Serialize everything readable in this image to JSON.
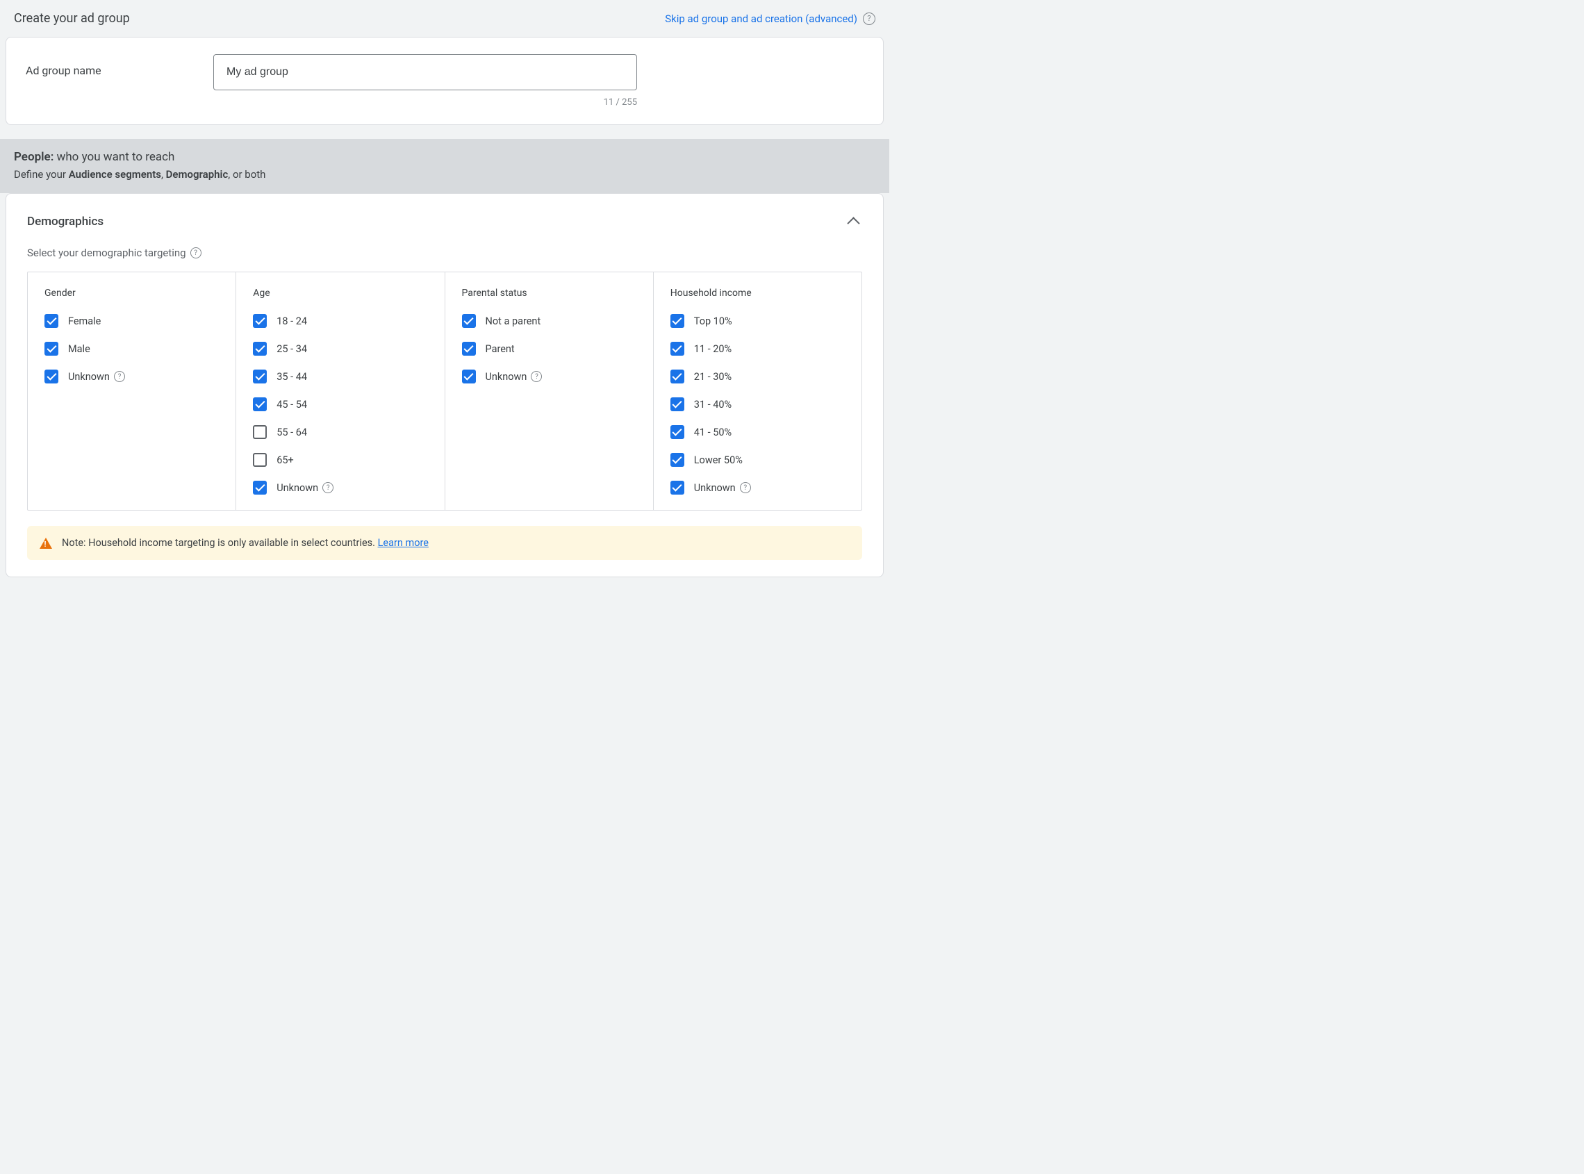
{
  "header": {
    "title": "Create your ad group",
    "skip_label": "Skip ad group and ad creation (advanced)"
  },
  "name_section": {
    "label": "Ad group name",
    "value": "My ad group",
    "char_count": "11 / 255"
  },
  "people": {
    "title_bold": "People:",
    "title_rest": " who you want to reach",
    "sub_prefix": "Define your ",
    "sub_bold1": "Audience segments",
    "sub_sep": ", ",
    "sub_bold2": "Demographic",
    "sub_suffix": ", or both"
  },
  "demographics": {
    "title": "Demographics",
    "subtitle": "Select your demographic targeting",
    "columns": [
      {
        "title": "Gender",
        "options": [
          {
            "label": "Female",
            "checked": true,
            "help": false
          },
          {
            "label": "Male",
            "checked": true,
            "help": false
          },
          {
            "label": "Unknown",
            "checked": true,
            "help": true
          }
        ]
      },
      {
        "title": "Age",
        "options": [
          {
            "label": "18 - 24",
            "checked": true,
            "help": false
          },
          {
            "label": "25 - 34",
            "checked": true,
            "help": false
          },
          {
            "label": "35 - 44",
            "checked": true,
            "help": false
          },
          {
            "label": "45 - 54",
            "checked": true,
            "help": false
          },
          {
            "label": "55 - 64",
            "checked": false,
            "help": false
          },
          {
            "label": "65+",
            "checked": false,
            "help": false
          },
          {
            "label": "Unknown",
            "checked": true,
            "help": true
          }
        ]
      },
      {
        "title": "Parental status",
        "options": [
          {
            "label": "Not a parent",
            "checked": true,
            "help": false
          },
          {
            "label": "Parent",
            "checked": true,
            "help": false
          },
          {
            "label": "Unknown",
            "checked": true,
            "help": true
          }
        ]
      },
      {
        "title": "Household income",
        "options": [
          {
            "label": "Top 10%",
            "checked": true,
            "help": false
          },
          {
            "label": "11 - 20%",
            "checked": true,
            "help": false
          },
          {
            "label": "21 - 30%",
            "checked": true,
            "help": false
          },
          {
            "label": "31 - 40%",
            "checked": true,
            "help": false
          },
          {
            "label": "41 - 50%",
            "checked": true,
            "help": false
          },
          {
            "label": "Lower 50%",
            "checked": true,
            "help": false
          },
          {
            "label": "Unknown",
            "checked": true,
            "help": true
          }
        ]
      }
    ],
    "note_text": "Note: Household income targeting is only available in select countries. ",
    "learn_more": "Learn more"
  },
  "colors": {
    "accent": "#1a73e8",
    "page_bg": "#f1f3f4",
    "people_bg": "#d7dadd",
    "note_bg": "#fef7e0",
    "warn": "#e8710a",
    "border": "#dadce0",
    "text": "#3c4043",
    "muted": "#5f6368"
  }
}
